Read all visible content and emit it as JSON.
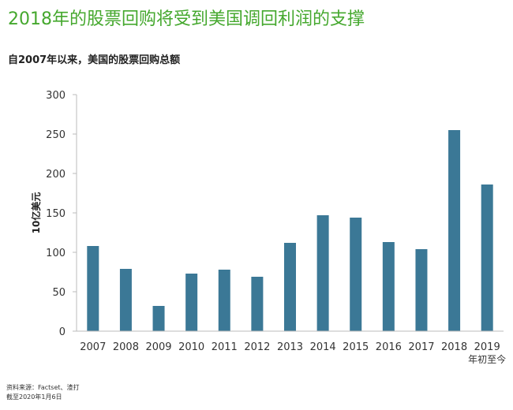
{
  "title": "2018年的股票回购将受到美国调回利润的支撑",
  "subtitle": "自2007年以来，美国的股票回购总额",
  "chart_data": {
    "type": "bar",
    "categories": [
      "2007",
      "2008",
      "2009",
      "2010",
      "2011",
      "2012",
      "2013",
      "2014",
      "2015",
      "2016",
      "2017",
      "2018",
      "2019"
    ],
    "values": [
      108,
      79,
      32,
      73,
      78,
      69,
      112,
      147,
      144,
      113,
      104,
      255,
      186
    ],
    "ylim": [
      0,
      300
    ],
    "yticks": [
      0,
      50,
      100,
      150,
      200,
      250,
      300
    ],
    "ylabel": "10亿美元",
    "xlabel": "",
    "last_category_note": "年初至今",
    "bar_color": "#3b7896",
    "grid": false
  },
  "footer": {
    "source": "资料来源：Factset、渣打",
    "date": "截至2020年1月6日"
  }
}
